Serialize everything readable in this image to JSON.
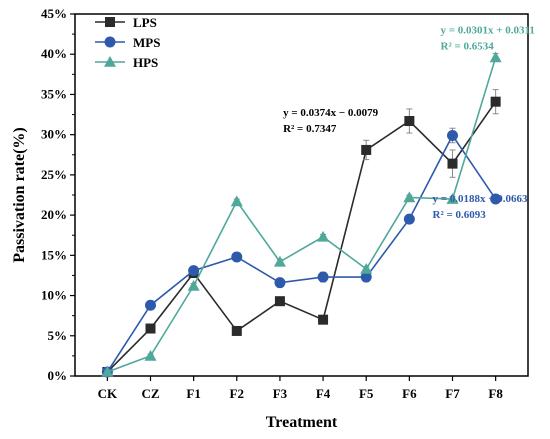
{
  "chart_data": {
    "type": "line",
    "xlabel": "Treatment",
    "ylabel": "Passivation rate(%)",
    "categories": [
      "CK",
      "CZ",
      "F1",
      "F2",
      "F3",
      "F4",
      "F5",
      "F6",
      "F7",
      "F8"
    ],
    "ylim": [
      0,
      45
    ],
    "yticks": [
      "0%",
      "5%",
      "10%",
      "15%",
      "20%",
      "25%",
      "30%",
      "35%",
      "40%",
      "45%"
    ],
    "legend_position": "top-left",
    "series": [
      {
        "name": "LPS",
        "color": "#2b2b2b",
        "marker": "square",
        "values": [
          0.5,
          5.9,
          12.8,
          5.6,
          9.3,
          7.0,
          28.1,
          31.7,
          26.4,
          34.1
        ],
        "errors": [
          0.3,
          0.3,
          0.4,
          0.3,
          0.3,
          0.5,
          1.2,
          1.5,
          1.7,
          1.5
        ],
        "equation": {
          "line1": "y = 0.0374x − 0.0079",
          "line2": "R² = 0.7347",
          "color": "#000000"
        }
      },
      {
        "name": "MPS",
        "color": "#2e5aac",
        "marker": "circle",
        "values": [
          0.5,
          8.8,
          13.1,
          14.8,
          11.6,
          12.3,
          12.3,
          19.5,
          29.9,
          22.0
        ],
        "errors": [
          0.2,
          0.3,
          0.4,
          0.3,
          0.3,
          0.6,
          0.3,
          0.4,
          0.9,
          0.3
        ],
        "equation": {
          "line1": "y = 0.0188x + 0.0663",
          "line2": "R² = 0.6093",
          "color": "#2e5aac"
        }
      },
      {
        "name": "HPS",
        "color": "#4fa89a",
        "marker": "triangle",
        "values": [
          0.5,
          2.5,
          11.2,
          21.7,
          14.2,
          17.3,
          13.3,
          22.2,
          22.0,
          39.6
        ],
        "errors": [
          0.2,
          0.2,
          0.3,
          0.3,
          0.3,
          0.3,
          0.3,
          0.3,
          0.3,
          0.5
        ],
        "equation": {
          "line1": "y = 0.0301x + 0.0311",
          "line2": "R² = 0.6534",
          "color": "#4fa89a"
        }
      }
    ]
  }
}
